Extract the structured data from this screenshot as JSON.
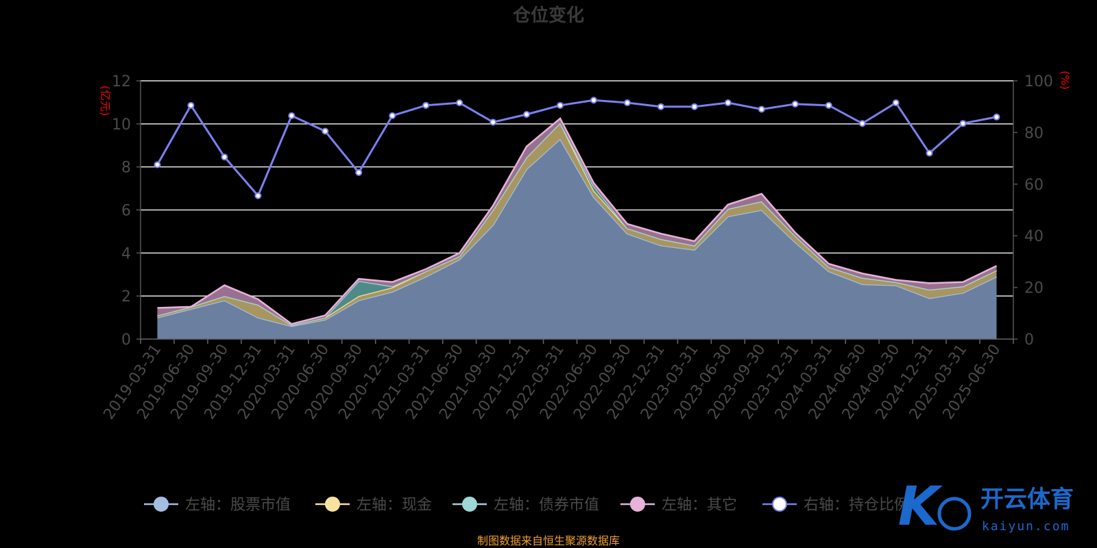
{
  "chart_data": {
    "type": "area",
    "title": "仓位变化",
    "y_left": {
      "unit_label": "(亿元)",
      "ylim": [
        0,
        12
      ],
      "ticks": [
        0,
        2,
        4,
        6,
        8,
        10,
        12
      ]
    },
    "y_right": {
      "unit_label": "(%)",
      "ylim": [
        0,
        100
      ],
      "ticks": [
        0,
        20,
        40,
        60,
        80,
        100
      ]
    },
    "categories": [
      "2019-03-31",
      "2019-06-30",
      "2019-09-30",
      "2019-12-31",
      "2020-03-31",
      "2020-06-30",
      "2020-09-30",
      "2020-12-31",
      "2021-03-31",
      "2021-06-30",
      "2021-09-30",
      "2021-12-31",
      "2022-03-31",
      "2022-06-30",
      "2022-09-30",
      "2022-12-31",
      "2023-03-31",
      "2023-06-30",
      "2023-09-30",
      "2023-12-31",
      "2024-03-31",
      "2024-06-30",
      "2024-09-30",
      "2024-12-31",
      "2025-03-31",
      "2025-06-30"
    ],
    "stacked": true,
    "series": [
      {
        "name": "左轴：股票市值",
        "axis": "left",
        "color": "#a3bde0",
        "fill": "#6b7fa0",
        "values": [
          1.0,
          1.4,
          1.8,
          1.0,
          0.6,
          0.9,
          1.8,
          2.2,
          2.9,
          3.7,
          5.3,
          7.9,
          9.3,
          6.6,
          4.9,
          4.35,
          4.15,
          5.7,
          6.0,
          4.5,
          3.15,
          2.55,
          2.5,
          1.9,
          2.15,
          2.9
        ]
      },
      {
        "name": "左轴：现金",
        "axis": "left",
        "color": "#f7e3a0",
        "fill": "#a89660",
        "values": [
          0.1,
          0.1,
          0.2,
          0.6,
          0.05,
          0.1,
          0.2,
          0.2,
          0.25,
          0.15,
          0.7,
          0.55,
          0.75,
          0.3,
          0.25,
          0.3,
          0.2,
          0.35,
          0.4,
          0.3,
          0.2,
          0.3,
          0.15,
          0.4,
          0.3,
          0.3
        ]
      },
      {
        "name": "左轴：债券市值",
        "axis": "left",
        "color": "#9fd6d6",
        "fill": "#4f8a88",
        "values": [
          0.0,
          0.0,
          0.0,
          0.0,
          0.0,
          0.0,
          0.7,
          0.05,
          0.0,
          0.0,
          0.0,
          0.0,
          0.0,
          0.2,
          0.0,
          0.0,
          0.0,
          0.0,
          0.0,
          0.0,
          0.0,
          0.0,
          0.0,
          0.0,
          0.0,
          0.0
        ]
      },
      {
        "name": "左轴：其它",
        "axis": "left",
        "color": "#e7b3d9",
        "fill": "#9a7090",
        "values": [
          0.35,
          0.0,
          0.5,
          0.25,
          0.05,
          0.1,
          0.1,
          0.2,
          0.1,
          0.15,
          0.2,
          0.5,
          0.2,
          0.15,
          0.2,
          0.25,
          0.2,
          0.2,
          0.35,
          0.15,
          0.15,
          0.2,
          0.1,
          0.3,
          0.2,
          0.2
        ]
      },
      {
        "name": "右轴：持仓比例",
        "axis": "right",
        "type": "line",
        "color": "#7b80f0",
        "values": [
          67.5,
          90.5,
          70.5,
          55.5,
          86.5,
          80.5,
          64.5,
          86.5,
          90.5,
          91.5,
          84,
          87,
          90.5,
          92.5,
          91.5,
          90,
          90,
          91.5,
          89,
          91,
          90.5,
          83.5,
          91.5,
          72,
          83.5,
          86
        ]
      }
    ],
    "legend_position": "bottom",
    "grid": true
  },
  "footer": {
    "source": "制图数据来自恒生聚源数据库"
  },
  "watermark": {
    "name_cn": "开云体育",
    "name_en": "kaiyun.com",
    "logo_letter": "K"
  }
}
